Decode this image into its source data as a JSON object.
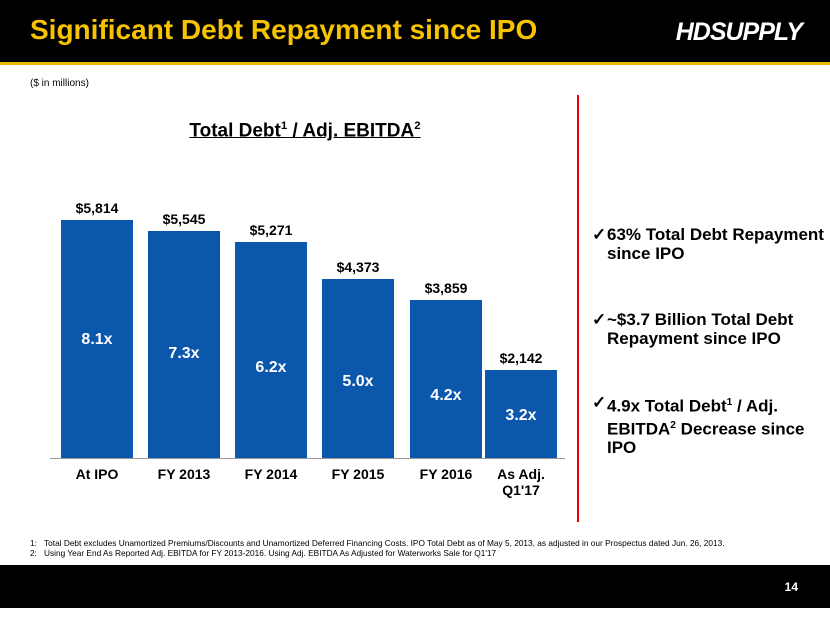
{
  "header": {
    "title": "Significant Debt Repayment since IPO",
    "logo": "HDSUPPLY"
  },
  "units_note": "($ in millions)",
  "chart_data": {
    "type": "bar",
    "title": [
      "Total Debt",
      "1",
      " / Adj. EBITDA",
      "2"
    ],
    "categories": [
      "At IPO",
      "FY 2013",
      "FY 2014",
      "FY 2015",
      "FY 2016",
      "As Adj. Q1'17"
    ],
    "values": [
      5814,
      5545,
      5271,
      4373,
      3859,
      2142
    ],
    "value_labels": [
      "$5,814",
      "$5,545",
      "$5,271",
      "$4,373",
      "$3,859",
      "$2,142"
    ],
    "ratio_labels": [
      "8.1x",
      "7.3x",
      "6.2x",
      "5.0x",
      "4.2x",
      "3.2x"
    ],
    "color": "#0b57ab"
  },
  "bullets": [
    [
      "63% Total Debt Repayment since IPO"
    ],
    [
      "~$3.7 Billion Total Debt Repayment since IPO"
    ],
    [
      "4.9x Total Debt",
      "1",
      " / Adj. EBITDA",
      "2",
      " Decrease since IPO"
    ]
  ],
  "footnotes": [
    {
      "marker": "1:",
      "text": "Total Debt excludes Unamortized Premiums/Discounts and Unamortized Deferred Financing Costs. IPO Total Debt as of May 5, 2013, as adjusted in our Prospectus dated Jun. 26, 2013."
    },
    {
      "marker": "2:",
      "text": "Using Year End As Reported Adj. EBITDA for FY 2013-2016. Using Adj. EBITDA As Adjusted for Waterworks Sale for Q1'17"
    }
  ],
  "page_number": "14"
}
